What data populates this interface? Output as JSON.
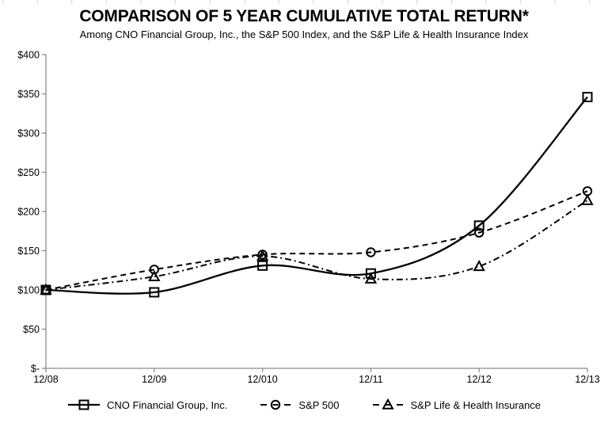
{
  "chart_data": {
    "type": "line",
    "title": "COMPARISON OF 5 YEAR CUMULATIVE TOTAL RETURN*",
    "subtitle": "Among CNO Financial Group, Inc., the S&P 500 Index, and the S&P Life & Health Insurance Index",
    "categories": [
      "12/08",
      "12/09",
      "12/010",
      "12/11",
      "12/12",
      "12/13"
    ],
    "series": [
      {
        "name": "CNO Financial Group, Inc.",
        "marker": "square",
        "line_style": "solid",
        "values": [
          100,
          97,
          131,
          121,
          182,
          346
        ]
      },
      {
        "name": "S&P 500",
        "marker": "circle",
        "line_style": "dashed",
        "values": [
          100,
          126,
          145,
          148,
          173,
          226
        ]
      },
      {
        "name": "S&P Life & Health Insurance",
        "marker": "triangle",
        "line_style": "dash-dot",
        "values": [
          100,
          117,
          143,
          114,
          130,
          214
        ]
      }
    ],
    "y_ticks": [
      {
        "value": 400,
        "label": "$400"
      },
      {
        "value": 350,
        "label": "$350"
      },
      {
        "value": 300,
        "label": "$300"
      },
      {
        "value": 250,
        "label": "$250"
      },
      {
        "value": 200,
        "label": "$200"
      },
      {
        "value": 150,
        "label": "$150"
      },
      {
        "value": 100,
        "label": "$100"
      },
      {
        "value": 50,
        "label": "$50"
      },
      {
        "value": 0,
        "label": "$-"
      }
    ],
    "ylim": [
      0,
      400
    ],
    "grid": false,
    "smoothed": true,
    "legend_position": "bottom",
    "colors": {
      "series": "#000000",
      "axis": "#8c8c8c",
      "text": "#000000",
      "background": "#ffffff",
      "ruler_tick": "#d8d8ea"
    }
  }
}
